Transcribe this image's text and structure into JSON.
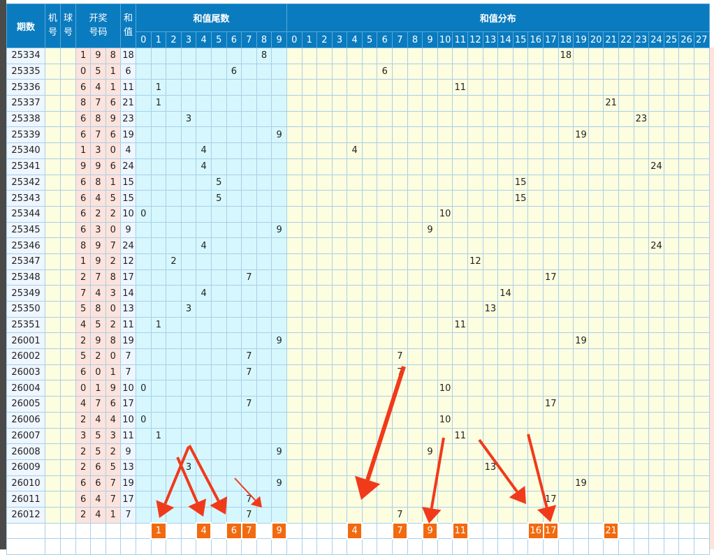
{
  "header": {
    "issue": "期数",
    "machine": "机号",
    "ball": "球号",
    "draw": "开奖号码",
    "sum": "和值",
    "tail_group": "和值尾数",
    "dist_group": "和值分布",
    "tail_cols": [
      "0",
      "1",
      "2",
      "3",
      "4",
      "5",
      "6",
      "7",
      "8",
      "9"
    ],
    "dist_cols": [
      "0",
      "1",
      "2",
      "3",
      "4",
      "5",
      "6",
      "7",
      "8",
      "9",
      "10",
      "11",
      "12",
      "13",
      "14",
      "15",
      "16",
      "17",
      "18",
      "19",
      "20",
      "21",
      "22",
      "23",
      "24",
      "25",
      "26",
      "27"
    ]
  },
  "rows": [
    {
      "issue": "25334",
      "digits": [
        "1",
        "9",
        "8"
      ],
      "sum": "18",
      "tail": "8"
    },
    {
      "issue": "25335",
      "digits": [
        "0",
        "5",
        "1"
      ],
      "sum": "6",
      "tail": "6"
    },
    {
      "issue": "25336",
      "digits": [
        "6",
        "4",
        "1"
      ],
      "sum": "11",
      "tail": "1"
    },
    {
      "issue": "25337",
      "digits": [
        "8",
        "7",
        "6"
      ],
      "sum": "21",
      "tail": "1"
    },
    {
      "issue": "25338",
      "digits": [
        "6",
        "8",
        "9"
      ],
      "sum": "23",
      "tail": "3"
    },
    {
      "issue": "25339",
      "digits": [
        "6",
        "7",
        "6"
      ],
      "sum": "19",
      "tail": "9"
    },
    {
      "issue": "25340",
      "digits": [
        "1",
        "3",
        "0"
      ],
      "sum": "4",
      "tail": "4"
    },
    {
      "issue": "25341",
      "digits": [
        "9",
        "9",
        "6"
      ],
      "sum": "24",
      "tail": "4"
    },
    {
      "issue": "25342",
      "digits": [
        "6",
        "8",
        "1"
      ],
      "sum": "15",
      "tail": "5"
    },
    {
      "issue": "25343",
      "digits": [
        "6",
        "4",
        "5"
      ],
      "sum": "15",
      "tail": "5"
    },
    {
      "issue": "25344",
      "digits": [
        "6",
        "2",
        "2"
      ],
      "sum": "10",
      "tail": "0"
    },
    {
      "issue": "25345",
      "digits": [
        "6",
        "3",
        "0"
      ],
      "sum": "9",
      "tail": "9"
    },
    {
      "issue": "25346",
      "digits": [
        "8",
        "9",
        "7"
      ],
      "sum": "24",
      "tail": "4"
    },
    {
      "issue": "25347",
      "digits": [
        "1",
        "9",
        "2"
      ],
      "sum": "12",
      "tail": "2"
    },
    {
      "issue": "25348",
      "digits": [
        "2",
        "7",
        "8"
      ],
      "sum": "17",
      "tail": "7"
    },
    {
      "issue": "25349",
      "digits": [
        "7",
        "4",
        "3"
      ],
      "sum": "14",
      "tail": "4"
    },
    {
      "issue": "25350",
      "digits": [
        "5",
        "8",
        "0"
      ],
      "sum": "13",
      "tail": "3"
    },
    {
      "issue": "25351",
      "digits": [
        "4",
        "5",
        "2"
      ],
      "sum": "11",
      "tail": "1"
    },
    {
      "issue": "26001",
      "digits": [
        "2",
        "9",
        "8"
      ],
      "sum": "19",
      "tail": "9"
    },
    {
      "issue": "26002",
      "digits": [
        "5",
        "2",
        "0"
      ],
      "sum": "7",
      "tail": "7"
    },
    {
      "issue": "26003",
      "digits": [
        "6",
        "0",
        "1"
      ],
      "sum": "7",
      "tail": "7"
    },
    {
      "issue": "26004",
      "digits": [
        "0",
        "1",
        "9"
      ],
      "sum": "10",
      "tail": "0"
    },
    {
      "issue": "26005",
      "digits": [
        "4",
        "7",
        "6"
      ],
      "sum": "17",
      "tail": "7"
    },
    {
      "issue": "26006",
      "digits": [
        "2",
        "4",
        "4"
      ],
      "sum": "10",
      "tail": "0"
    },
    {
      "issue": "26007",
      "digits": [
        "3",
        "5",
        "3"
      ],
      "sum": "11",
      "tail": "1"
    },
    {
      "issue": "26008",
      "digits": [
        "2",
        "5",
        "2"
      ],
      "sum": "9",
      "tail": "9"
    },
    {
      "issue": "26009",
      "digits": [
        "2",
        "6",
        "5"
      ],
      "sum": "13",
      "tail": "3"
    },
    {
      "issue": "26010",
      "digits": [
        "6",
        "6",
        "7"
      ],
      "sum": "19",
      "tail": "9"
    },
    {
      "issue": "26011",
      "digits": [
        "6",
        "4",
        "7"
      ],
      "sum": "17",
      "tail": "7"
    },
    {
      "issue": "26012",
      "digits": [
        "2",
        "4",
        "1"
      ],
      "sum": "7",
      "tail": "7"
    }
  ],
  "prediction": {
    "tail_picks": [
      "1",
      "4",
      "6",
      "7",
      "9"
    ],
    "dist_picks": [
      "4",
      "7",
      "9",
      "11",
      "16",
      "17",
      "21"
    ]
  },
  "colors": {
    "header": "#0a7bbf",
    "highlight": "#f26a10",
    "arrow": "#f03a1a",
    "tail_bg": "#d6f7fd",
    "dist_bg": "#fdfde0",
    "draw_bg": "#fde3dc"
  }
}
